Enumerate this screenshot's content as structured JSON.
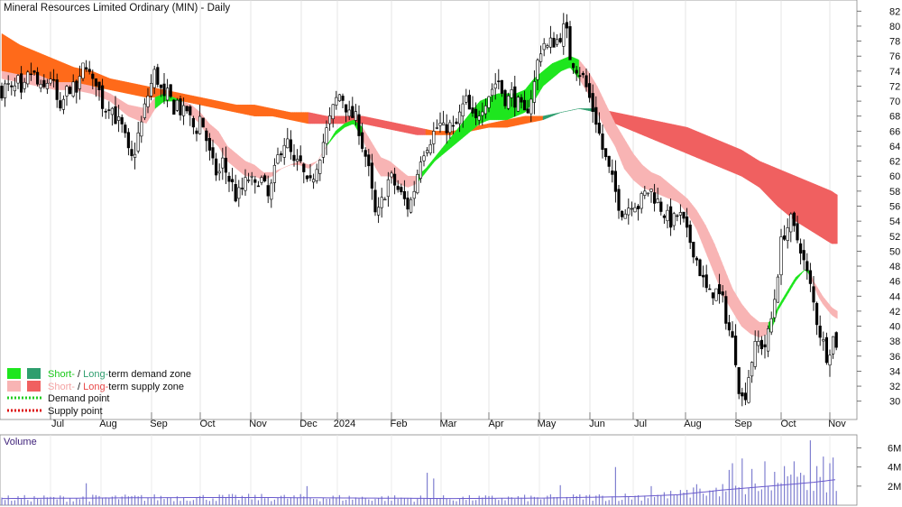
{
  "title": "Mineral Resources Limited Ordinary (MIN) - Daily",
  "volume_label": "Volume",
  "legend": {
    "demand": {
      "prefix": "Short-",
      "sep": " / ",
      "long": "Long-",
      "suffix": "term demand zone"
    },
    "supply": {
      "prefix": "Short-",
      "sep": " / ",
      "long": "Long-",
      "suffix": "term supply zone"
    },
    "demand_point": "Demand point",
    "supply_point": "Supply point"
  },
  "colors": {
    "short_demand": "#1ee61e",
    "long_demand": "#2e9e6e",
    "short_supply": "#f8b4b4",
    "long_supply": "#f06060",
    "long_supply_orange": "#ff6a1a",
    "volume_bar": "#8080d0",
    "volume_ma": "#6a5acd",
    "candle": "#000000",
    "demand_point": "#22cc22",
    "supply_point": "#dd1111"
  },
  "chart_data": {
    "type": "candlestick",
    "price_axis": {
      "ylim": [
        29,
        83
      ],
      "ticks": [
        30,
        32,
        34,
        36,
        38,
        40,
        42,
        44,
        46,
        48,
        50,
        52,
        54,
        56,
        58,
        60,
        62,
        64,
        66,
        68,
        70,
        72,
        74,
        76,
        78,
        80,
        82
      ]
    },
    "volume_axis": {
      "ylim": [
        0,
        7
      ],
      "unit": "M",
      "ticks": [
        {
          "v": 2,
          "label": "2M"
        },
        {
          "v": 4,
          "label": "4M"
        },
        {
          "v": 6,
          "label": "6M"
        }
      ]
    },
    "x_months": [
      "Jul",
      "Aug",
      "Sep",
      "Oct",
      "Nov",
      "Dec",
      "2024",
      "Feb",
      "Mar",
      "Apr",
      "May",
      "Jun",
      "Jul",
      "Aug",
      "Sep",
      "Oct",
      "Nov"
    ],
    "close_path": [
      [
        0,
        71.5
      ],
      [
        6,
        72
      ],
      [
        12,
        71
      ],
      [
        18,
        72.5
      ],
      [
        22,
        70
      ],
      [
        28,
        73
      ],
      [
        34,
        74
      ],
      [
        40,
        72
      ],
      [
        45,
        71
      ],
      [
        50,
        72.5
      ],
      [
        55,
        73.5
      ],
      [
        60,
        70.5
      ],
      [
        65,
        68
      ],
      [
        70,
        71
      ],
      [
        76,
        72
      ],
      [
        82,
        71
      ],
      [
        88,
        73
      ],
      [
        92,
        76
      ],
      [
        96,
        74
      ],
      [
        100,
        72
      ],
      [
        105,
        73
      ],
      [
        110,
        70
      ],
      [
        115,
        69
      ],
      [
        120,
        70
      ],
      [
        125,
        68
      ],
      [
        130,
        67
      ],
      [
        135,
        66
      ],
      [
        140,
        63
      ],
      [
        145,
        62
      ],
      [
        150,
        65
      ],
      [
        155,
        67
      ],
      [
        160,
        70
      ],
      [
        165,
        72
      ],
      [
        170,
        74
      ],
      [
        175,
        72
      ],
      [
        180,
        70
      ],
      [
        185,
        71
      ],
      [
        190,
        69
      ],
      [
        195,
        70
      ],
      [
        200,
        68
      ],
      [
        205,
        69
      ],
      [
        210,
        67
      ],
      [
        215,
        66
      ],
      [
        220,
        68
      ],
      [
        225,
        66
      ],
      [
        230,
        63
      ],
      [
        235,
        61
      ],
      [
        240,
        60
      ],
      [
        245,
        62
      ],
      [
        250,
        60
      ],
      [
        255,
        59
      ],
      [
        260,
        57
      ],
      [
        265,
        58
      ],
      [
        270,
        59
      ],
      [
        275,
        60
      ],
      [
        280,
        58
      ],
      [
        285,
        60
      ],
      [
        290,
        59
      ],
      [
        295,
        57
      ],
      [
        300,
        59
      ],
      [
        305,
        62
      ],
      [
        310,
        64
      ],
      [
        315,
        65
      ],
      [
        320,
        63
      ],
      [
        325,
        61
      ],
      [
        330,
        62
      ],
      [
        335,
        60
      ],
      [
        340,
        58
      ],
      [
        345,
        60
      ],
      [
        350,
        62
      ],
      [
        355,
        64
      ],
      [
        360,
        66
      ],
      [
        365,
        68
      ],
      [
        370,
        70
      ],
      [
        375,
        71
      ],
      [
        380,
        70
      ],
      [
        385,
        68
      ],
      [
        390,
        68
      ],
      [
        395,
        67
      ],
      [
        400,
        64
      ],
      [
        405,
        62
      ],
      [
        410,
        58
      ],
      [
        415,
        54
      ],
      [
        420,
        56
      ],
      [
        425,
        58
      ],
      [
        430,
        60
      ],
      [
        435,
        59
      ],
      [
        440,
        58
      ],
      [
        445,
        57
      ],
      [
        450,
        56
      ],
      [
        455,
        57
      ],
      [
        460,
        60
      ],
      [
        465,
        63
      ],
      [
        470,
        64
      ],
      [
        475,
        65
      ],
      [
        480,
        66
      ],
      [
        485,
        67
      ],
      [
        490,
        66
      ],
      [
        495,
        67
      ],
      [
        500,
        66
      ],
      [
        505,
        67
      ],
      [
        510,
        69
      ],
      [
        515,
        70
      ],
      [
        520,
        68
      ],
      [
        525,
        67
      ],
      [
        530,
        69
      ],
      [
        535,
        70
      ],
      [
        540,
        71
      ],
      [
        545,
        72
      ],
      [
        550,
        73
      ],
      [
        555,
        71
      ],
      [
        560,
        70
      ],
      [
        565,
        71
      ],
      [
        570,
        70
      ],
      [
        575,
        69
      ],
      [
        580,
        68
      ],
      [
        585,
        70
      ],
      [
        590,
        72
      ],
      [
        595,
        76
      ],
      [
        600,
        78
      ],
      [
        605,
        77
      ],
      [
        610,
        78
      ],
      [
        615,
        78
      ],
      [
        620,
        79
      ],
      [
        625,
        80
      ],
      [
        630,
        76
      ],
      [
        635,
        75
      ],
      [
        640,
        74
      ],
      [
        645,
        73
      ],
      [
        650,
        71
      ],
      [
        655,
        69
      ],
      [
        660,
        67
      ],
      [
        665,
        64
      ],
      [
        670,
        62
      ],
      [
        675,
        60
      ],
      [
        680,
        58
      ],
      [
        685,
        56
      ],
      [
        690,
        55
      ],
      [
        695,
        56
      ],
      [
        700,
        57
      ],
      [
        705,
        56
      ],
      [
        710,
        57
      ],
      [
        715,
        58
      ],
      [
        720,
        58
      ],
      [
        725,
        57
      ],
      [
        730,
        56
      ],
      [
        735,
        55
      ],
      [
        740,
        54
      ],
      [
        745,
        54
      ],
      [
        750,
        55
      ],
      [
        755,
        54
      ],
      [
        760,
        52
      ],
      [
        765,
        51
      ],
      [
        770,
        49
      ],
      [
        775,
        47
      ],
      [
        780,
        45
      ],
      [
        785,
        44
      ],
      [
        790,
        45
      ],
      [
        795,
        44
      ],
      [
        800,
        43
      ],
      [
        805,
        40
      ],
      [
        810,
        38
      ],
      [
        815,
        35
      ],
      [
        818,
        31
      ],
      [
        822,
        30
      ],
      [
        826,
        32
      ],
      [
        830,
        35
      ],
      [
        835,
        37
      ],
      [
        840,
        38
      ],
      [
        845,
        37
      ],
      [
        850,
        39
      ],
      [
        855,
        42
      ],
      [
        860,
        47
      ],
      [
        865,
        52
      ],
      [
        870,
        53
      ],
      [
        875,
        54
      ],
      [
        880,
        52
      ],
      [
        885,
        51
      ],
      [
        890,
        48
      ],
      [
        895,
        46
      ],
      [
        900,
        43
      ],
      [
        905,
        40
      ],
      [
        910,
        38
      ],
      [
        915,
        36
      ],
      [
        920,
        38
      ],
      [
        924,
        39
      ],
      [
        926,
        37
      ]
    ],
    "bands": {
      "short_term": [
        [
          0,
          73,
          74
        ],
        [
          20,
          72.5,
          73.5
        ],
        [
          40,
          72,
          73.5
        ],
        [
          60,
          71.5,
          72.5
        ],
        [
          80,
          71.5,
          72.5
        ],
        [
          100,
          71,
          72
        ],
        [
          120,
          70,
          71
        ],
        [
          140,
          68,
          69.5
        ],
        [
          160,
          67,
          69
        ],
        [
          170,
          69,
          70.5
        ],
        [
          180,
          70,
          71
        ],
        [
          190,
          70,
          70.5
        ],
        [
          200,
          70,
          70
        ],
        [
          210,
          68,
          69.5
        ],
        [
          220,
          67,
          68.5
        ],
        [
          230,
          65,
          67
        ],
        [
          240,
          64,
          66
        ],
        [
          250,
          62,
          64
        ],
        [
          260,
          61,
          63
        ],
        [
          270,
          60,
          62
        ],
        [
          280,
          60,
          61.5
        ],
        [
          290,
          59.5,
          60.5
        ],
        [
          300,
          60,
          60.5
        ],
        [
          310,
          61,
          61
        ],
        [
          320,
          61.5,
          61.5
        ],
        [
          330,
          61.5,
          62
        ],
        [
          340,
          61,
          61.5
        ],
        [
          350,
          62,
          62
        ],
        [
          360,
          64,
          64
        ],
        [
          370,
          65.5,
          66
        ],
        [
          380,
          66.5,
          67
        ],
        [
          390,
          67,
          67.5
        ],
        [
          400,
          65,
          66.5
        ],
        [
          410,
          62,
          64.5
        ],
        [
          420,
          60,
          62.5
        ],
        [
          430,
          60,
          62
        ],
        [
          440,
          59,
          61
        ],
        [
          450,
          58.5,
          60
        ],
        [
          460,
          59,
          60
        ],
        [
          470,
          60.5,
          61
        ],
        [
          480,
          62,
          62.5
        ],
        [
          490,
          63,
          64
        ],
        [
          500,
          64,
          65.5
        ],
        [
          510,
          65,
          67
        ],
        [
          520,
          66,
          68.5
        ],
        [
          530,
          67,
          70
        ],
        [
          540,
          67.5,
          70.5
        ],
        [
          550,
          67.5,
          71
        ],
        [
          560,
          67.5,
          71
        ],
        [
          570,
          68,
          71
        ],
        [
          580,
          68.5,
          71.5
        ],
        [
          590,
          70,
          73
        ],
        [
          600,
          72,
          74
        ],
        [
          610,
          73,
          75
        ],
        [
          620,
          74,
          75.5
        ],
        [
          630,
          74.5,
          76
        ],
        [
          640,
          73,
          75.5
        ],
        [
          650,
          71,
          74
        ],
        [
          660,
          68.5,
          72
        ],
        [
          670,
          66,
          69.5
        ],
        [
          680,
          64,
          67
        ],
        [
          690,
          61,
          65
        ],
        [
          700,
          59.5,
          63
        ],
        [
          710,
          58.5,
          61.5
        ],
        [
          720,
          58,
          60.5
        ],
        [
          730,
          57.5,
          60
        ],
        [
          740,
          57,
          59
        ],
        [
          750,
          56.5,
          58
        ],
        [
          760,
          55,
          57
        ],
        [
          770,
          53,
          55.5
        ],
        [
          780,
          50,
          53.5
        ],
        [
          790,
          47,
          51
        ],
        [
          800,
          44,
          48
        ],
        [
          810,
          42,
          45
        ],
        [
          820,
          40,
          43
        ],
        [
          830,
          39,
          41.5
        ],
        [
          840,
          38.5,
          40.5
        ],
        [
          850,
          39,
          40.5
        ],
        [
          855,
          40,
          41
        ],
        [
          860,
          42,
          42.5
        ],
        [
          870,
          44,
          44.5
        ],
        [
          880,
          46,
          46.5
        ],
        [
          890,
          47.5,
          47.5
        ],
        [
          895,
          47,
          47.5
        ],
        [
          900,
          45.5,
          46
        ],
        [
          905,
          44,
          45
        ],
        [
          910,
          43,
          44
        ],
        [
          920,
          41.5,
          42.5
        ],
        [
          926,
          41,
          42
        ]
      ],
      "long_term": [
        [
          0,
          74,
          79
        ],
        [
          20,
          73.5,
          77.5
        ],
        [
          40,
          73,
          76.5
        ],
        [
          60,
          72.5,
          75.5
        ],
        [
          80,
          72,
          74.5
        ],
        [
          100,
          72,
          74
        ],
        [
          120,
          71.5,
          73
        ],
        [
          140,
          71,
          72.5
        ],
        [
          160,
          70.5,
          72
        ],
        [
          180,
          70.5,
          71.5
        ],
        [
          200,
          70,
          71
        ],
        [
          220,
          69.5,
          70.5
        ],
        [
          240,
          69,
          70
        ],
        [
          260,
          68.5,
          69.5
        ],
        [
          280,
          68,
          69.5
        ],
        [
          300,
          68,
          69
        ],
        [
          320,
          67.5,
          68.5
        ],
        [
          340,
          67,
          68.5
        ],
        [
          360,
          67,
          68
        ],
        [
          380,
          67,
          68
        ],
        [
          400,
          67,
          68
        ],
        [
          420,
          66.5,
          67.5
        ],
        [
          440,
          66,
          67
        ],
        [
          460,
          65.5,
          66.5
        ],
        [
          480,
          65.5,
          66
        ],
        [
          500,
          65.5,
          66
        ],
        [
          520,
          66,
          66.5
        ],
        [
          540,
          66.5,
          67
        ],
        [
          560,
          66.5,
          67.5
        ],
        [
          580,
          67,
          68
        ],
        [
          600,
          67.5,
          68
        ],
        [
          620,
          68.5,
          68.5
        ],
        [
          640,
          69,
          69
        ],
        [
          660,
          68.5,
          69
        ],
        [
          680,
          67,
          68.5
        ],
        [
          700,
          66,
          68
        ],
        [
          720,
          65,
          67.5
        ],
        [
          740,
          64,
          67
        ],
        [
          760,
          63,
          66.5
        ],
        [
          780,
          62,
          65.5
        ],
        [
          800,
          61,
          64.5
        ],
        [
          820,
          60,
          63.5
        ],
        [
          840,
          58.5,
          62
        ],
        [
          860,
          56,
          61
        ],
        [
          880,
          54,
          60
        ],
        [
          900,
          52.5,
          59
        ],
        [
          920,
          51,
          58
        ],
        [
          926,
          51,
          57.5
        ]
      ]
    },
    "volume_ma": [
      [
        0,
        0.7
      ],
      [
        100,
        0.75
      ],
      [
        200,
        0.8
      ],
      [
        300,
        0.8
      ],
      [
        400,
        0.75
      ],
      [
        500,
        0.7
      ],
      [
        600,
        0.75
      ],
      [
        700,
        0.9
      ],
      [
        750,
        1.1
      ],
      [
        800,
        1.6
      ],
      [
        850,
        2.0
      ],
      [
        900,
        2.4
      ],
      [
        926,
        2.7
      ]
    ],
    "volume_spikes": [
      [
        95,
        2.3
      ],
      [
        340,
        2.0
      ],
      [
        470,
        3.4
      ],
      [
        478,
        2.8
      ],
      [
        620,
        2.1
      ],
      [
        680,
        4.0
      ],
      [
        720,
        2.0
      ],
      [
        770,
        2.2
      ],
      [
        805,
        3.7
      ],
      [
        810,
        4.4
      ],
      [
        820,
        4.9
      ],
      [
        830,
        3.8
      ],
      [
        845,
        4.6
      ],
      [
        856,
        3.5
      ],
      [
        868,
        4.1
      ],
      [
        880,
        4.6
      ],
      [
        885,
        3.4
      ],
      [
        898,
        6.8
      ],
      [
        905,
        4.1
      ],
      [
        912,
        5.1
      ],
      [
        918,
        4.4
      ],
      [
        922,
        5.0
      ]
    ]
  }
}
